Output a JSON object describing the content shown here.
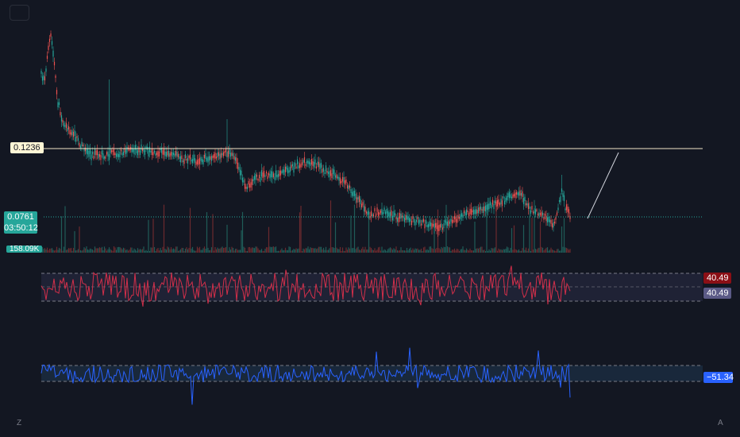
{
  "chart_data": [
    {
      "type": "candlestick",
      "pane": "price",
      "price_levels": {
        "horizontal_line": 0.1236,
        "last_price": 0.0761
      },
      "countdown": "03:50:12",
      "volume_label": "158.09K",
      "colors": {
        "up": "#26a69a",
        "down": "#ef5350",
        "level_line": "#f0e6c8",
        "last_line": "#26a69a"
      }
    },
    {
      "type": "line",
      "pane": "oscillator-1",
      "value_labels": [
        "40.49",
        "40.49"
      ],
      "colors": {
        "line": "#d32f4a",
        "band": "#2a2b45",
        "tag1": "#8b0f16",
        "tag2": "#5b5a86"
      }
    },
    {
      "type": "line",
      "pane": "oscillator-2",
      "value_labels": [
        "−51.34"
      ],
      "colors": {
        "line": "#2962ff",
        "band": "#1b2a3e",
        "tag": "#2962ff"
      }
    }
  ],
  "corners": {
    "left": "Z",
    "right": "A"
  }
}
